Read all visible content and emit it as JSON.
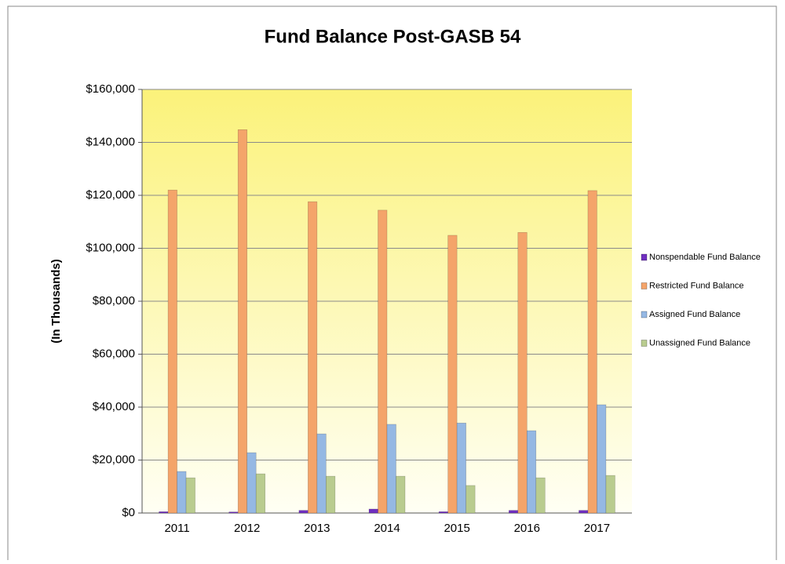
{
  "chart_data": {
    "type": "bar",
    "title": "Fund Balance Post-GASB 54",
    "y_label": "(In Thousands)",
    "categories": [
      "2011",
      "2012",
      "2013",
      "2014",
      "2015",
      "2016",
      "2017"
    ],
    "series": [
      {
        "name": "Nonspendable Fund Balance",
        "color": "#7030c0",
        "values": [
          500,
          400,
          1000,
          1500,
          500,
          1000,
          1000
        ]
      },
      {
        "name": "Restricted Fund Balance",
        "color": "#f4a46a",
        "values": [
          122000,
          144800,
          117600,
          114400,
          104900,
          106000,
          121800
        ]
      },
      {
        "name": "Assigned Fund Balance",
        "color": "#95b8e3",
        "values": [
          15700,
          22800,
          29900,
          33500,
          34000,
          31100,
          40900
        ]
      },
      {
        "name": "Unassigned Fund Balance",
        "color": "#b9cc8f",
        "values": [
          13300,
          14800,
          13900,
          13900,
          10400,
          13300,
          14200
        ]
      }
    ],
    "ylim": [
      0,
      160000
    ],
    "yticks": [
      {
        "value": 0,
        "label": "$0"
      },
      {
        "value": 20000,
        "label": "$20,000"
      },
      {
        "value": 40000,
        "label": "$40,000"
      },
      {
        "value": 60000,
        "label": "$60,000"
      },
      {
        "value": 80000,
        "label": "$80,000"
      },
      {
        "value": 100000,
        "label": "$100,000"
      },
      {
        "value": 120000,
        "label": "$120,000"
      },
      {
        "value": 140000,
        "label": "$140,000"
      },
      {
        "value": 160000,
        "label": "$160,000"
      }
    ],
    "grid": true,
    "legend": "right"
  }
}
